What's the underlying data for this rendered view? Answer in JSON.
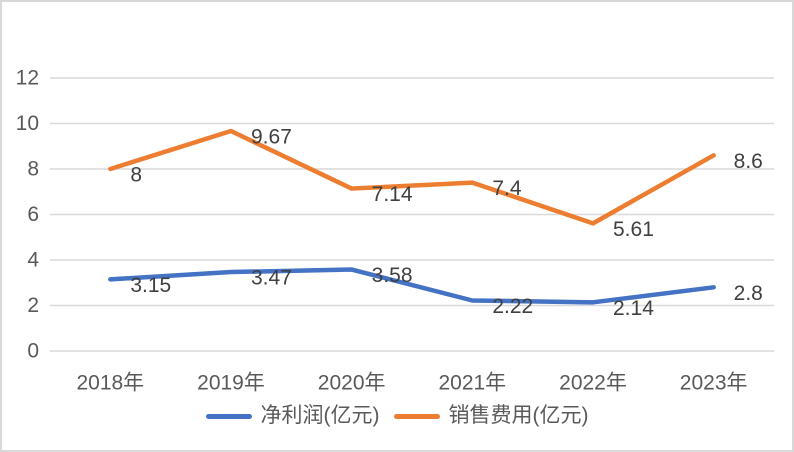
{
  "chart_data": {
    "type": "line",
    "title": "",
    "categories": [
      "2018年",
      "2019年",
      "2020年",
      "2021年",
      "2022年",
      "2023年"
    ],
    "series": [
      {
        "name": "净利润(亿元)",
        "values": [
          3.15,
          3.47,
          3.58,
          2.22,
          2.14,
          2.8
        ],
        "labels": [
          "3.15",
          "3.47",
          "3.58",
          "2.22",
          "2.14",
          "2.8"
        ],
        "color": "#4472C4"
      },
      {
        "name": "销售费用(亿元)",
        "values": [
          8,
          9.67,
          7.14,
          7.4,
          5.61,
          8.6
        ],
        "labels": [
          "8",
          "9.67",
          "7.14",
          "7.4",
          "5.61",
          "8.6"
        ],
        "color": "#ED7D31"
      }
    ],
    "y_ticks": [
      0,
      2,
      4,
      6,
      8,
      10,
      12
    ],
    "ylim": [
      0,
      12
    ],
    "xlabel": "",
    "ylabel": "",
    "grid": true,
    "legend_position": "bottom",
    "colors": {
      "gridline": "#d9d9d9",
      "axis_text": "#595959",
      "data_label_text": "#404040",
      "frame_border": "#d8d8d8",
      "background": "#ffffff"
    }
  }
}
